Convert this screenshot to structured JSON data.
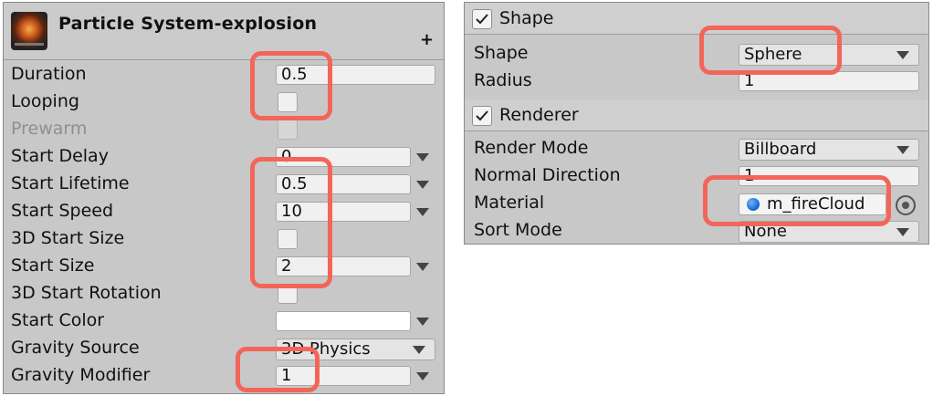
{
  "left": {
    "title": "Particle System-explosion",
    "plus_symbol": "+",
    "rows": [
      {
        "label": "Duration",
        "value": "0.5"
      },
      {
        "label": "Looping"
      },
      {
        "label": "Prewarm"
      },
      {
        "label": "Start Delay",
        "value": "0"
      },
      {
        "label": "Start Lifetime",
        "value": "0.5"
      },
      {
        "label": "Start Speed",
        "value": "10"
      },
      {
        "label": "3D Start Size"
      },
      {
        "label": "Start Size",
        "value": "2"
      },
      {
        "label": "3D Start Rotation"
      },
      {
        "label": "Start Color"
      },
      {
        "label": "Gravity Source",
        "value": "3D Physics"
      },
      {
        "label": "Gravity Modifier",
        "value": "1"
      }
    ]
  },
  "right": {
    "shape_section": {
      "title": "Shape",
      "shape_label": "Shape",
      "shape_value": "Sphere",
      "radius_label": "Radius",
      "radius_value": "1"
    },
    "renderer_section": {
      "title": "Renderer",
      "render_mode_label": "Render Mode",
      "render_mode_value": "Billboard",
      "normal_direction_label": "Normal Direction",
      "normal_direction_value": "1",
      "material_label": "Material",
      "material_value": "m_fireCloud",
      "sort_mode_label": "Sort Mode",
      "sort_mode_value": "None"
    }
  },
  "colors": {
    "panel_bg": "#c8c8c8",
    "highlight": "#f3655a",
    "material_icon": "#1f6fd6"
  },
  "icons": [
    "particle-thumbnail-icon",
    "checkmark-icon",
    "dropdown-caret-icon",
    "material-sphere-icon",
    "object-picker-icon"
  ]
}
